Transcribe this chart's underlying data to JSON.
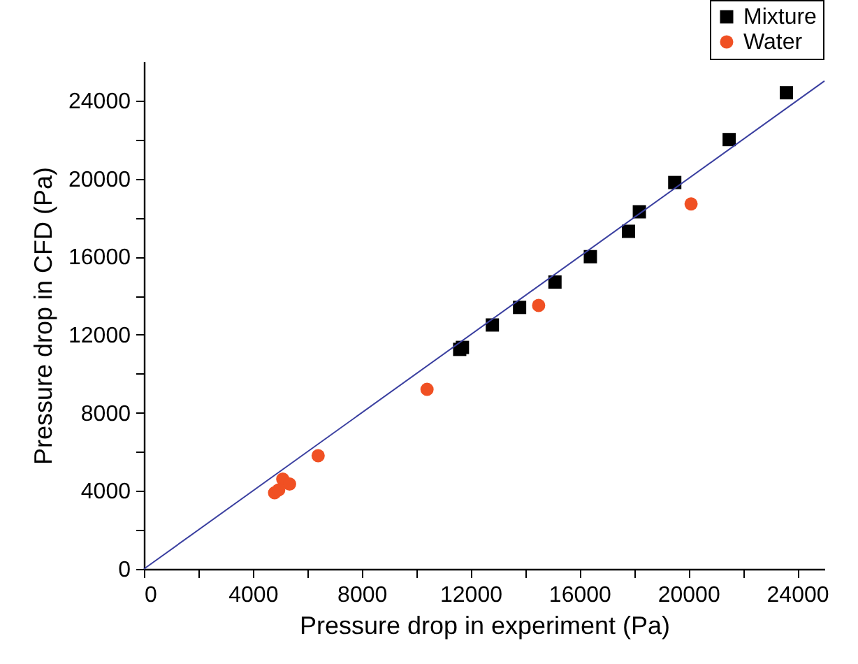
{
  "chart_data": {
    "type": "scatter",
    "xlabel": "Pressure drop in experiment (Pa)",
    "ylabel": "Pressure drop in CFD (Pa)",
    "xlim": [
      0,
      25000
    ],
    "ylim": [
      0,
      26000
    ],
    "xticks": [
      0,
      {
        "value": 2000,
        "label": null
      },
      4000,
      {
        "value": 6000,
        "label": null
      },
      8000,
      {
        "value": 10000,
        "label": null
      },
      12000,
      {
        "value": 14000,
        "label": null
      },
      16000,
      {
        "value": 18000,
        "label": null
      },
      20000,
      {
        "value": 22000,
        "label": null
      },
      24000
    ],
    "yticks": [
      0,
      {
        "value": 2000,
        "label": null
      },
      4000,
      {
        "value": 6000,
        "label": null
      },
      8000,
      {
        "value": 10000,
        "label": null
      },
      12000,
      {
        "value": 14000,
        "label": null
      },
      16000,
      {
        "value": 18000,
        "label": null
      },
      20000,
      {
        "value": 22000,
        "label": null
      },
      24000
    ],
    "grid": false,
    "legend": "top right",
    "series": [
      {
        "name": "Mixture",
        "color": "#000000",
        "marker": "square",
        "x": [
          23600,
          21500,
          19500,
          18200,
          17800,
          16400,
          15100,
          13800,
          12800,
          11600,
          11700
        ],
        "values": [
          24400,
          22000,
          19800,
          18300,
          17300,
          16000,
          14700,
          13400,
          12500,
          11250,
          11350
        ]
      },
      {
        "name": "Water",
        "color": "#f05023",
        "marker": "circle",
        "x": [
          20100,
          14500,
          10400,
          6400,
          5100,
          5350,
          4800,
          4950
        ],
        "values": [
          18700,
          13500,
          9200,
          5800,
          4600,
          4350,
          3900,
          4050
        ]
      },
      {
        "type": "line",
        "color": "#3a3fa0",
        "line_style": "solid",
        "x": [
          0,
          25000
        ],
        "values": [
          0,
          25000
        ]
      }
    ]
  }
}
